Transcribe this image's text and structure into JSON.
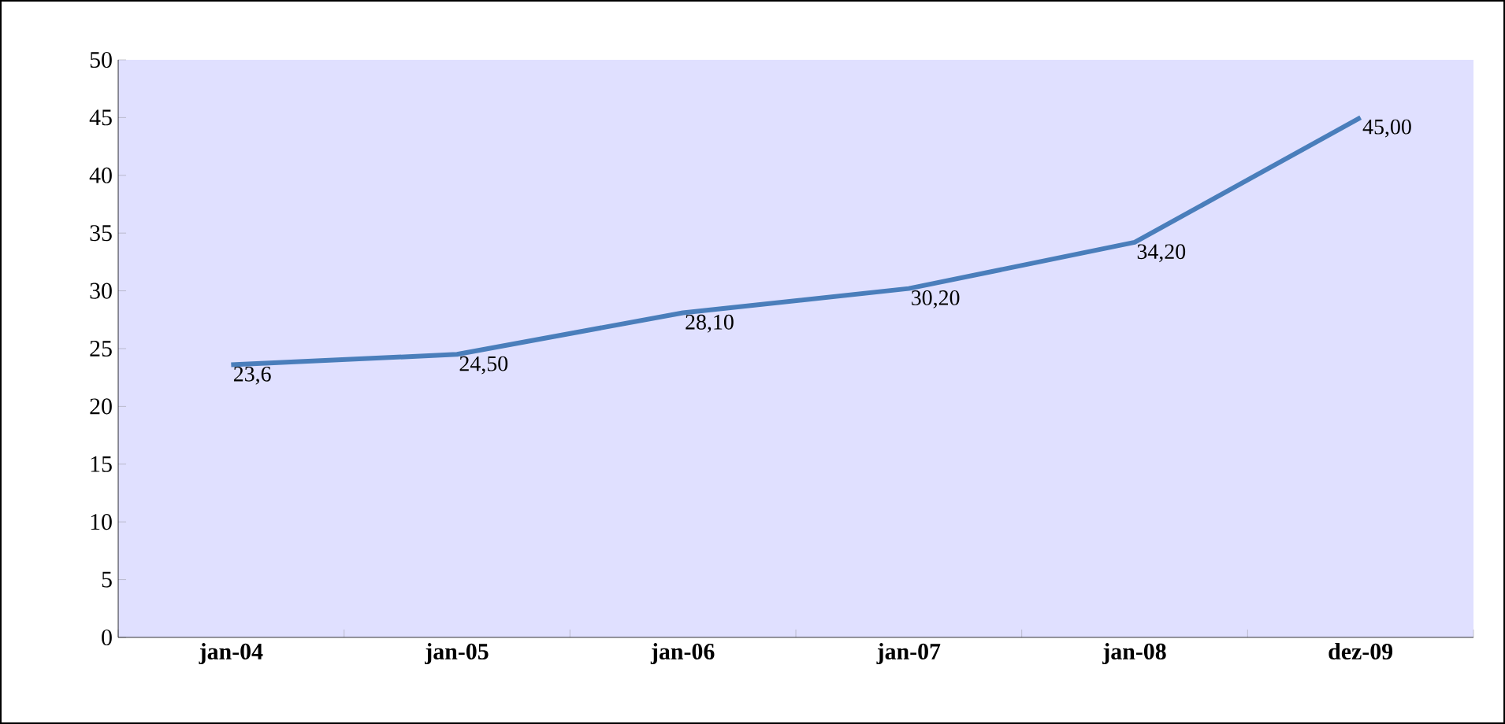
{
  "chart_data": {
    "type": "line",
    "categories": [
      "jan-04",
      "jan-05",
      "jan-06",
      "jan-07",
      "jan-08",
      "dez-09"
    ],
    "values": [
      23.6,
      24.5,
      28.1,
      30.2,
      34.2,
      45.0
    ],
    "value_labels": [
      "23,6",
      "24,50",
      "28,10",
      "30,20",
      "34,20",
      "45,00"
    ],
    "color": "#4a7ebb",
    "ylim": [
      0,
      50
    ],
    "yticks": [
      0,
      5,
      10,
      15,
      20,
      25,
      30,
      35,
      40,
      45,
      50
    ],
    "marker": "none",
    "line_style": "solid"
  }
}
